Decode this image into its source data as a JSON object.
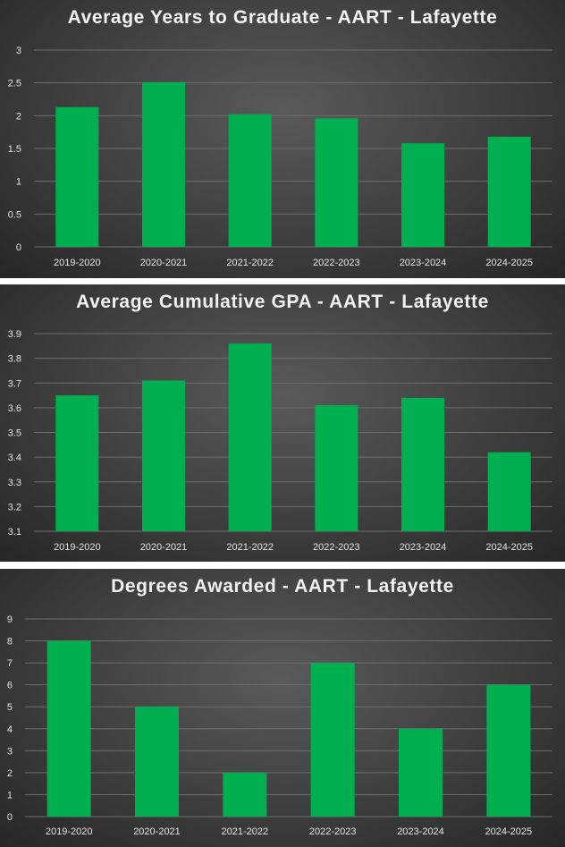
{
  "chart_data": [
    {
      "type": "bar",
      "title": "Average Years to Graduate - AART - Lafayette",
      "categories": [
        "2019-2020",
        "2020-2021",
        "2021-2022",
        "2022-2023",
        "2023-2024",
        "2024-2025"
      ],
      "values": [
        2.13,
        2.51,
        2.02,
        1.96,
        1.58,
        1.68
      ],
      "ylim": [
        0,
        3
      ],
      "yticks": [
        "0",
        "0.5",
        "1",
        "1.5",
        "2",
        "2.5",
        "3"
      ],
      "grid": true,
      "colors": {
        "bar": "#00b050"
      }
    },
    {
      "type": "bar",
      "title": "Average Cumulative GPA - AART - Lafayette",
      "categories": [
        "2019-2020",
        "2020-2021",
        "2021-2022",
        "2022-2023",
        "2023-2024",
        "2024-2025"
      ],
      "values": [
        3.65,
        3.71,
        3.86,
        3.61,
        3.64,
        3.42
      ],
      "ylim": [
        3.1,
        3.9
      ],
      "yticks": [
        "3.1",
        "3.2",
        "3.3",
        "3.4",
        "3.5",
        "3.6",
        "3.7",
        "3.8",
        "3.9"
      ],
      "grid": true,
      "colors": {
        "bar": "#00b050"
      }
    },
    {
      "type": "bar",
      "title": "Degrees Awarded - AART - Lafayette",
      "categories": [
        "2019-2020",
        "2020-2021",
        "2021-2022",
        "2022-2023",
        "2023-2024",
        "2024-2025"
      ],
      "values": [
        8,
        5,
        2,
        7,
        4,
        6
      ],
      "ylim": [
        0,
        9
      ],
      "yticks": [
        "0",
        "1",
        "2",
        "3",
        "4",
        "5",
        "6",
        "7",
        "8",
        "9"
      ],
      "grid": true,
      "colors": {
        "bar": "#00b050"
      }
    }
  ]
}
